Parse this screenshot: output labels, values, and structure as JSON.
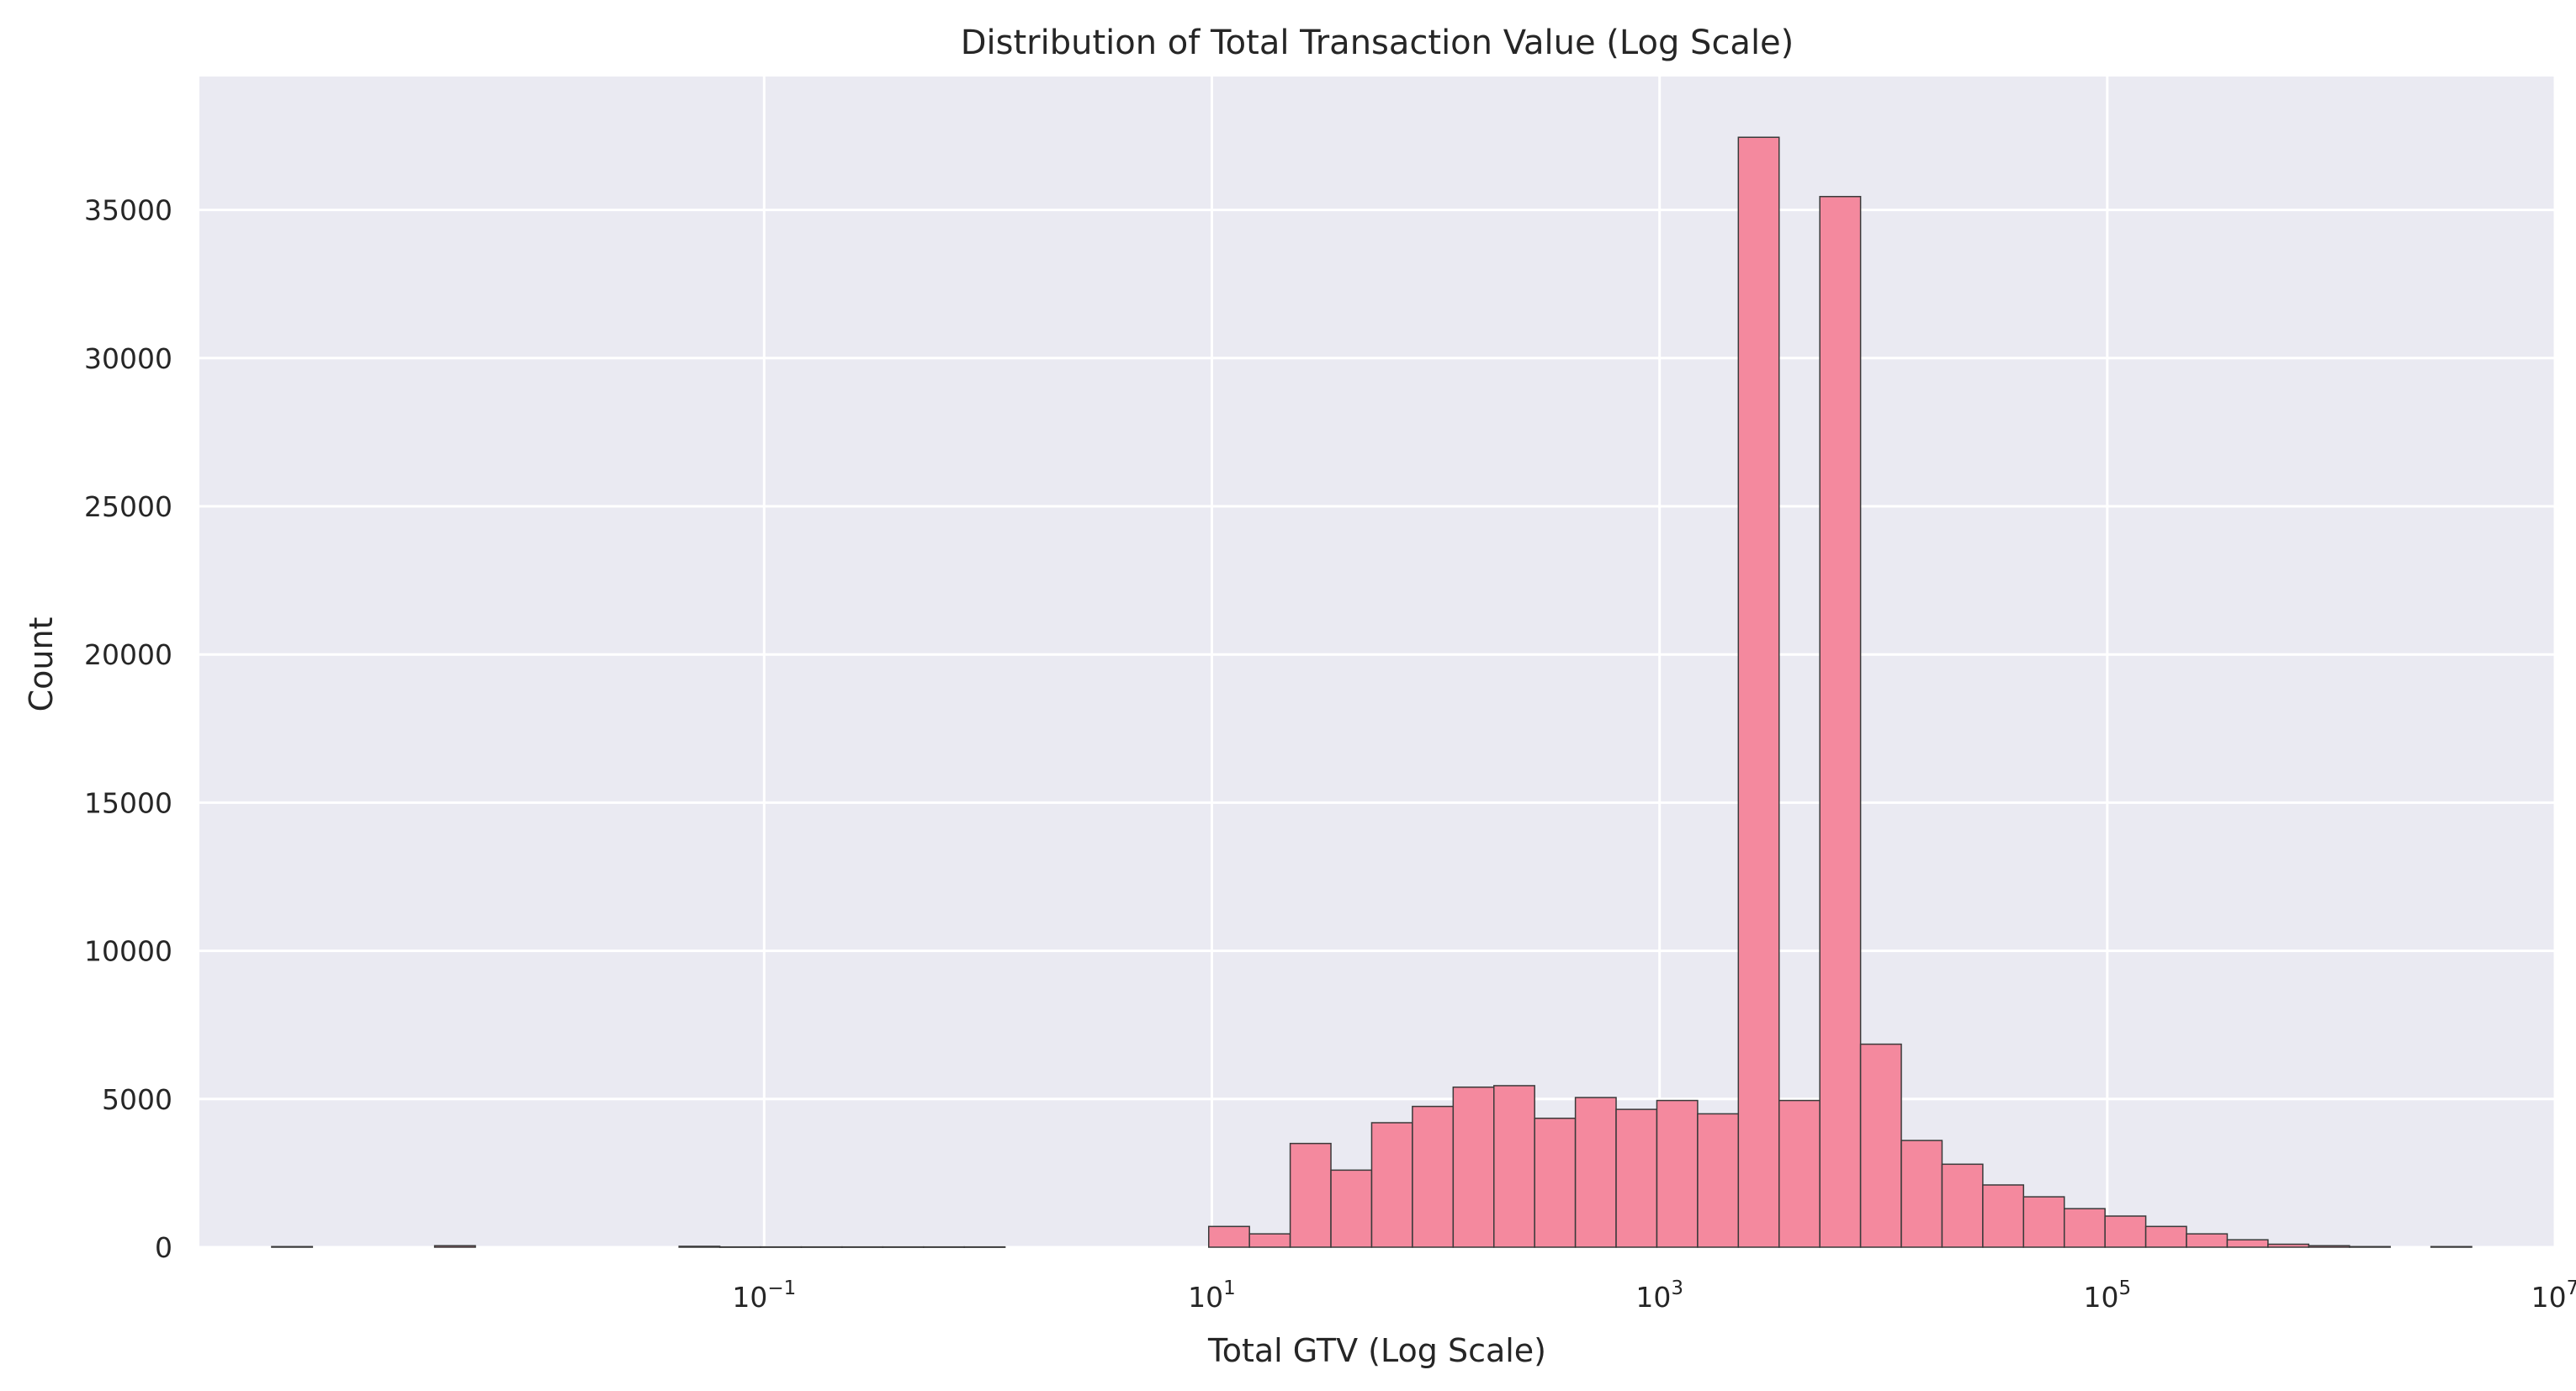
{
  "chart_data": {
    "type": "bar",
    "subtype": "histogram",
    "title": "Distribution of Total Transaction Value (Log Scale)",
    "xlabel": "Total GTV (Log Scale)",
    "ylabel": "Count",
    "x_scale": "log",
    "xlim": [
      0.0003,
      10000000
    ],
    "ylim": [
      0,
      39500
    ],
    "x_ticks": [
      {
        "value": 0.1,
        "base": "10",
        "exp": "−1"
      },
      {
        "value": 10,
        "base": "10",
        "exp": "1"
      },
      {
        "value": 1000,
        "base": "10",
        "exp": "3"
      },
      {
        "value": 100000,
        "base": "10",
        "exp": "5"
      },
      {
        "value": 10000000,
        "base": "10",
        "exp": "7"
      }
    ],
    "y_ticks": [
      0,
      5000,
      10000,
      15000,
      20000,
      25000,
      30000,
      35000
    ],
    "grid": true,
    "bin_edges_log10": [
      -3.2,
      -3.018,
      -2.836,
      -2.654,
      -2.472,
      -2.29,
      -2.108,
      -1.926,
      -1.744,
      -1.562,
      -1.38,
      -1.198,
      -1.016,
      -0.834,
      -0.652,
      -0.47,
      -0.288,
      -0.106,
      0.076,
      0.258,
      0.44,
      0.622,
      0.804,
      0.986,
      1.168,
      1.35,
      1.532,
      1.714,
      1.896,
      2.078,
      2.26,
      2.442,
      2.624,
      2.806,
      2.988,
      3.17,
      3.352,
      3.534,
      3.716,
      3.898,
      4.08,
      4.262,
      4.444,
      4.626,
      4.808,
      4.99,
      5.172,
      5.354,
      5.536,
      5.718,
      5.9,
      6.082,
      6.264,
      6.446,
      6.628
    ],
    "counts": [
      20,
      0,
      0,
      0,
      50,
      0,
      0,
      0,
      0,
      0,
      30,
      10,
      10,
      10,
      10,
      10,
      10,
      10,
      0,
      0,
      0,
      0,
      0,
      700,
      450,
      3500,
      2600,
      4200,
      4750,
      5400,
      5450,
      4350,
      5050,
      4650,
      4950,
      4500,
      37450,
      4950,
      35450,
      6850,
      3600,
      2800,
      2100,
      1700,
      1300,
      1050,
      700,
      450,
      250,
      100,
      50,
      20,
      0,
      20
    ],
    "colors": {
      "bar_fill": "#f4899e",
      "bar_edge": "#3a3a3a",
      "plot_background": "#eaeaf2",
      "grid": "#ffffff"
    }
  }
}
